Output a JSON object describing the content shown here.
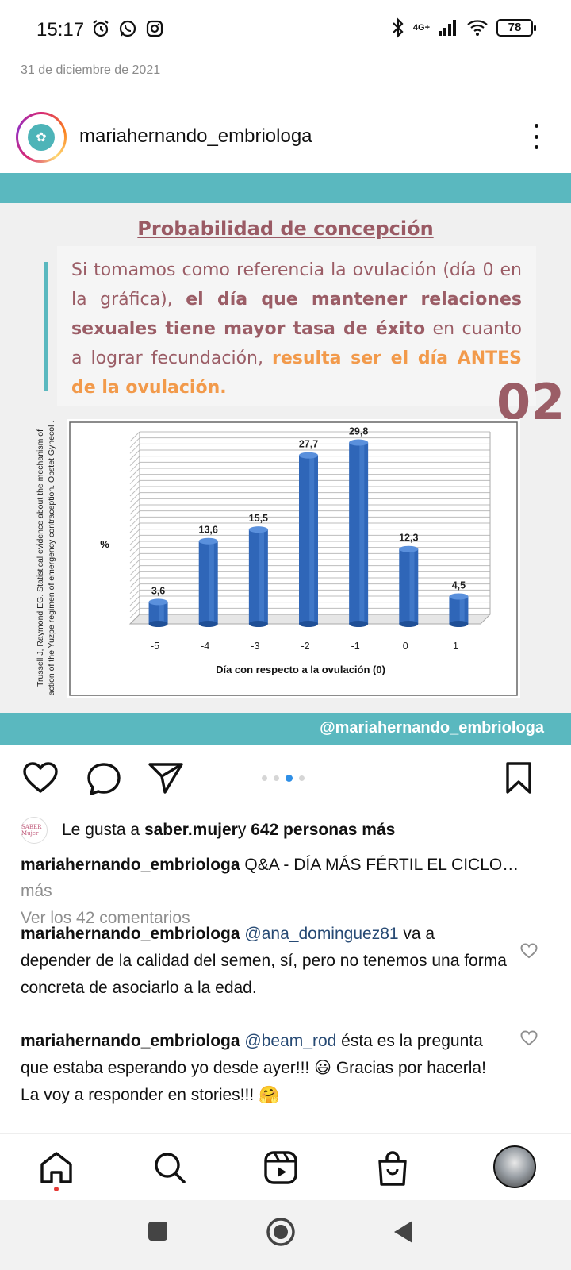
{
  "status_bar": {
    "time": "15:17",
    "network": "4G+",
    "battery": "78"
  },
  "post": {
    "date": "31 de diciembre de 2021",
    "username": "mariahernando_embriologa"
  },
  "image": {
    "title": "Probabilidad de concepción",
    "text_normal_1": "Si tomamos como referencia la ovulación (día 0 en la gráfica), ",
    "text_bold": "el día que mantener relaciones sexuales tiene mayor tasa de éxito",
    "text_normal_2": " en cuanto a lograr fecundación, ",
    "text_orange": "resulta ser el día ANTES de la ovulación.",
    "page_number": "02",
    "citation": "Trussell J, Raymond EG. Statistical evidence about the mechanism of action of the Yuzpe regimen of emergency contraception. Obstet Gynecol .",
    "handle": "@mariahernando_embriologa"
  },
  "chart_data": {
    "type": "bar",
    "categories": [
      "-5",
      "-4",
      "-3",
      "-2",
      "-1",
      "0",
      "1"
    ],
    "values": [
      3.6,
      13.6,
      15.5,
      27.7,
      29.8,
      12.3,
      4.5
    ],
    "value_labels": [
      "3,6",
      "13,6",
      "15,5",
      "27,7",
      "29,8",
      "12,3",
      "4,5"
    ],
    "title": "",
    "xlabel": "Día con respecto a la ovulación (0)",
    "ylabel": "%",
    "ylim": [
      0,
      30
    ],
    "grid": true,
    "bar_color": "#2f66b8"
  },
  "likes": {
    "prefix": "Le gusta a ",
    "user": "saber.mujer",
    "middle": " y ",
    "count_text": "642 personas más",
    "avatar_text": "SABER Mujer"
  },
  "caption": {
    "user": "mariahernando_embriologa",
    "text": " Q&A - DÍA MÁS FÉRTIL EL CICLO",
    "ellipsis": "…",
    "more": " más"
  },
  "comments_link": "Ver los 42 comentarios",
  "comments": [
    {
      "user": "mariahernando_embriologa",
      "mention": "@ana_dominguez81",
      "text": " va a depender de la calidad del semen, sí, pero no tenemos una forma concreta de asociarlo a la edad."
    },
    {
      "user": "mariahernando_embriologa",
      "mention": "@beam_rod",
      "text": " ésta es la pregunta que estaba esperando yo desde ayer!!! 😃 Gracias por hacerla! La voy a responder en stories!!! 🤗"
    }
  ],
  "colors": {
    "teal": "#5ab8bf",
    "mauve": "#9b5d66",
    "orange": "#f29a4b",
    "carousel_active": "#2f8fe6"
  },
  "carousel": {
    "total": 4,
    "active": 3
  }
}
